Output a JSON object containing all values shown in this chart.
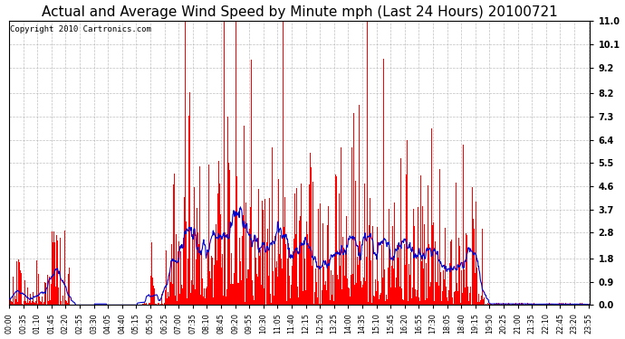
{
  "title": "Actual and Average Wind Speed by Minute mph (Last 24 Hours) 20100721",
  "copyright": "Copyright 2010 Cartronics.com",
  "yticks": [
    0.0,
    0.9,
    1.8,
    2.8,
    3.7,
    4.6,
    5.5,
    6.4,
    7.3,
    8.2,
    9.2,
    10.1,
    11.0
  ],
  "ylim_top": 11.0,
  "bar_color": "#ff0000",
  "line_color": "#0000cc",
  "background_color": "#ffffff",
  "grid_color": "#b0b0b0",
  "title_fontsize": 11,
  "copyright_fontsize": 6.5,
  "tick_fontsize": 7,
  "xtick_fontsize": 5.8,
  "minutes_per_day": 1440,
  "xtick_interval": 35,
  "avg_window": 30,
  "seed": 99
}
